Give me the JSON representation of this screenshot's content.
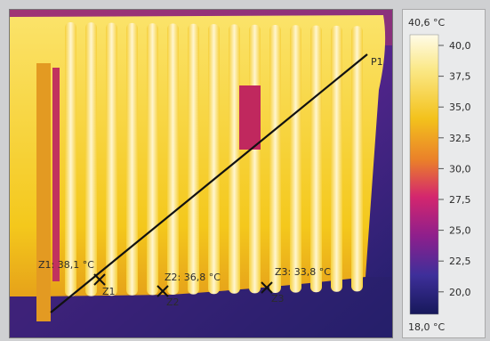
{
  "thermal_image": {
    "line_label": "P1",
    "zones": [
      {
        "id": "Z1",
        "label": "Z1: 38,1 °C",
        "marker": "Z1"
      },
      {
        "id": "Z2",
        "label": "Z2: 36,8 °C",
        "marker": "Z2"
      },
      {
        "id": "Z3",
        "label": "Z3: 33,8 °C",
        "marker": "Z3"
      }
    ]
  },
  "scale": {
    "max_label": "40,6 °C",
    "min_label": "18,0 °C",
    "ticks": [
      "40,0",
      "37,5",
      "35,0",
      "32,5",
      "30,0",
      "27,5",
      "25,0",
      "22,5",
      "20,0"
    ]
  },
  "colors": {
    "hot": "#fff8d0",
    "warm": "#f2c21a",
    "mid": "#d4266e",
    "cool": "#5a2a8a",
    "cold": "#1e1f6a"
  }
}
